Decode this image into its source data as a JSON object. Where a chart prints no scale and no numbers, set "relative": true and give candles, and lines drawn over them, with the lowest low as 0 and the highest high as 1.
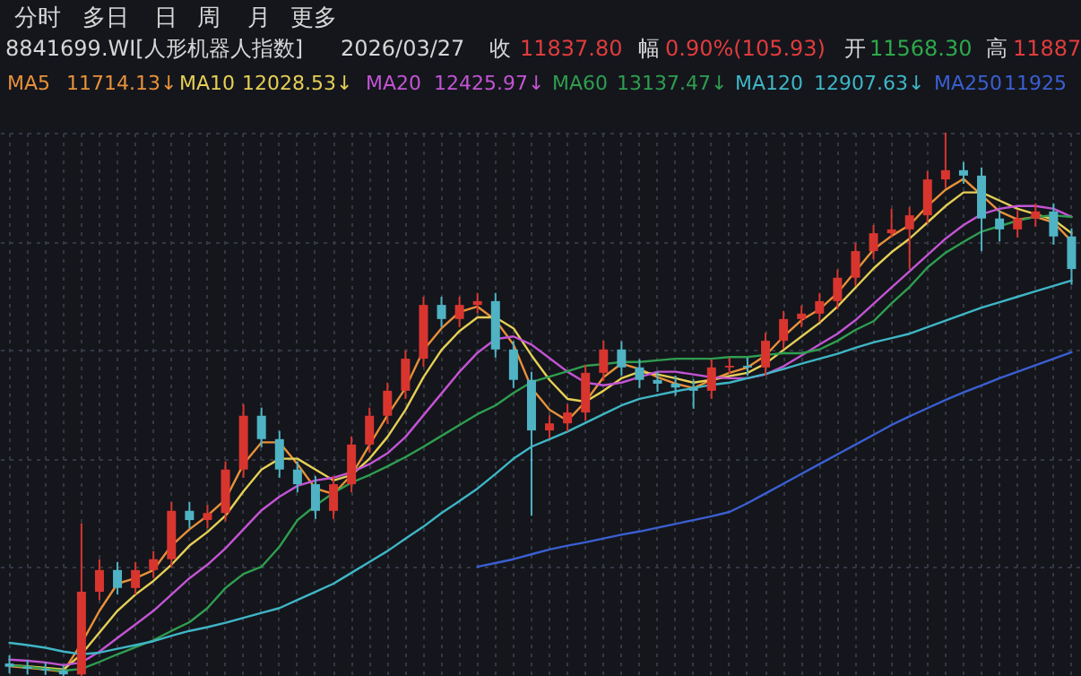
{
  "chart_data": {
    "type": "candlestick",
    "relative": true,
    "grid": true,
    "legend": "top left",
    "categories": [
      null,
      null,
      null,
      null,
      null,
      null,
      null,
      null,
      null,
      null,
      null,
      null,
      null,
      null,
      null,
      null,
      null,
      null,
      null,
      null,
      null,
      null,
      null,
      null,
      null,
      null,
      null,
      null,
      null,
      null,
      null,
      null,
      null,
      null,
      null,
      null,
      null,
      null,
      null,
      null,
      null,
      null,
      null,
      null,
      null,
      null,
      null,
      null,
      null,
      null,
      null,
      null,
      null,
      null,
      null,
      null,
      null,
      null,
      null,
      null
    ],
    "annotations": [
      "分时",
      "多日",
      "日",
      "周",
      "月",
      "更多",
      "8841699.WI[人形机器人指数]",
      "2026/03/27",
      "收",
      "11837.80",
      "幅",
      "0.90%(105.93)",
      "开",
      "11568.30",
      "高",
      "11887",
      "11714.13↓",
      "12028.53↓",
      "12425.97↓",
      "13137.47↓",
      "12907.63↓",
      "11925"
    ],
    "series": [
      {
        "type": "line",
        "name": "MA5",
        "color": "#e8913a",
        "values": [
          0.018,
          0.015,
          0.012,
          0.008,
          0.06,
          0.12,
          0.17,
          0.18,
          0.195,
          0.24,
          0.27,
          0.295,
          0.325,
          0.39,
          0.43,
          0.43,
          0.39,
          0.345,
          0.335,
          0.37,
          0.425,
          0.48,
          0.53,
          0.6,
          0.64,
          0.67,
          0.68,
          0.655,
          0.61,
          0.53,
          0.49,
          0.47,
          0.505,
          0.55,
          0.575,
          0.565,
          0.55,
          0.538,
          0.53,
          0.545,
          0.558,
          0.568,
          0.59,
          0.625,
          0.655,
          0.675,
          0.705,
          0.745,
          0.785,
          0.81,
          0.83,
          0.865,
          0.895,
          0.915,
          0.885,
          0.855,
          0.84,
          0.845,
          0.835,
          0.8
        ]
      },
      {
        "type": "line",
        "name": "MA10",
        "color": "#e6cf55",
        "values": [
          0.02,
          0.018,
          0.015,
          0.012,
          0.04,
          0.08,
          0.12,
          0.15,
          0.175,
          0.205,
          0.24,
          0.265,
          0.295,
          0.34,
          0.38,
          0.4,
          0.4,
          0.38,
          0.36,
          0.37,
          0.4,
          0.44,
          0.49,
          0.55,
          0.6,
          0.635,
          0.66,
          0.66,
          0.64,
          0.59,
          0.545,
          0.51,
          0.505,
          0.525,
          0.548,
          0.56,
          0.555,
          0.548,
          0.54,
          0.545,
          0.552,
          0.558,
          0.575,
          0.6,
          0.625,
          0.65,
          0.68,
          0.715,
          0.75,
          0.78,
          0.805,
          0.835,
          0.865,
          0.89,
          0.89,
          0.875,
          0.86,
          0.85,
          0.84,
          0.815
        ]
      },
      {
        "type": "line",
        "name": "MA20",
        "color": "#c454d4",
        "values": [
          0.03,
          0.028,
          0.025,
          0.02,
          0.025,
          0.045,
          0.07,
          0.095,
          0.12,
          0.15,
          0.18,
          0.205,
          0.235,
          0.27,
          0.305,
          0.33,
          0.35,
          0.36,
          0.365,
          0.375,
          0.39,
          0.41,
          0.44,
          0.48,
          0.52,
          0.56,
          0.595,
          0.62,
          0.625,
          0.61,
          0.585,
          0.56,
          0.54,
          0.535,
          0.54,
          0.55,
          0.56,
          0.56,
          0.555,
          0.55,
          0.548,
          0.548,
          0.555,
          0.57,
          0.59,
          0.61,
          0.63,
          0.655,
          0.685,
          0.715,
          0.745,
          0.775,
          0.805,
          0.83,
          0.85,
          0.86,
          0.865,
          0.865,
          0.86,
          0.845
        ]
      },
      {
        "type": "line",
        "name": "MA60",
        "color": "#2f9e4f",
        "values": [
          0.02,
          0.017,
          0.013,
          0.01,
          0.013,
          0.026,
          0.04,
          0.053,
          0.066,
          0.083,
          0.099,
          0.125,
          0.162,
          0.188,
          0.201,
          0.238,
          0.287,
          0.314,
          0.337,
          0.356,
          0.37,
          0.386,
          0.403,
          0.422,
          0.442,
          0.462,
          0.482,
          0.498,
          0.521,
          0.541,
          0.551,
          0.561,
          0.571,
          0.574,
          0.578,
          0.578,
          0.581,
          0.584,
          0.584,
          0.584,
          0.587,
          0.587,
          0.591,
          0.594,
          0.594,
          0.601,
          0.617,
          0.637,
          0.653,
          0.686,
          0.716,
          0.752,
          0.779,
          0.799,
          0.818,
          0.828,
          0.838,
          0.845,
          0.848,
          0.845
        ]
      },
      {
        "type": "line",
        "name": "MA120",
        "color": "#3fb6c6",
        "values": [
          0.061,
          0.057,
          0.052,
          0.045,
          0.04,
          0.043,
          0.05,
          0.057,
          0.064,
          0.074,
          0.083,
          0.09,
          0.098,
          0.107,
          0.116,
          0.125,
          0.14,
          0.155,
          0.17,
          0.19,
          0.21,
          0.23,
          0.253,
          0.275,
          0.3,
          0.322,
          0.345,
          0.372,
          0.4,
          0.422,
          0.436,
          0.45,
          0.466,
          0.482,
          0.498,
          0.51,
          0.517,
          0.524,
          0.53,
          0.536,
          0.54,
          0.548,
          0.556,
          0.565,
          0.575,
          0.584,
          0.593,
          0.604,
          0.614,
          0.622,
          0.63,
          0.642,
          0.654,
          0.666,
          0.678,
          0.688,
          0.698,
          0.708,
          0.718,
          0.728
        ]
      },
      {
        "type": "line",
        "name": "MA250",
        "color": "#3b5fd2",
        "values": [
          null,
          null,
          null,
          null,
          null,
          null,
          null,
          null,
          null,
          null,
          null,
          null,
          null,
          null,
          null,
          null,
          null,
          null,
          null,
          null,
          null,
          null,
          null,
          null,
          null,
          null,
          0.201,
          0.208,
          0.215,
          0.224,
          0.233,
          0.24,
          0.246,
          0.253,
          0.26,
          0.266,
          0.273,
          0.28,
          0.287,
          0.294,
          0.302,
          0.318,
          0.336,
          0.354,
          0.372,
          0.39,
          0.408,
          0.426,
          0.444,
          0.462,
          0.478,
          0.493,
          0.508,
          0.522,
          0.535,
          0.548,
          0.56,
          0.572,
          0.584,
          0.596
        ]
      },
      {
        "ohlc": [
          [
            0.023,
            0.038,
            0.005,
            0.017
          ],
          [
            0.017,
            0.03,
            0.003,
            0.013
          ],
          [
            0.013,
            0.025,
            0.002,
            0.01
          ],
          [
            0.01,
            0.02,
            0.0,
            0.003
          ],
          [
            0.003,
            0.281,
            0.0,
            0.155
          ],
          [
            0.155,
            0.215,
            0.14,
            0.195
          ],
          [
            0.195,
            0.21,
            0.15,
            0.162
          ],
          [
            0.162,
            0.21,
            0.15,
            0.195
          ],
          [
            0.195,
            0.23,
            0.18,
            0.215
          ],
          [
            0.215,
            0.32,
            0.2,
            0.304
          ],
          [
            0.304,
            0.32,
            0.272,
            0.287
          ],
          [
            0.287,
            0.315,
            0.272,
            0.3
          ],
          [
            0.3,
            0.395,
            0.285,
            0.38
          ],
          [
            0.38,
            0.5,
            0.365,
            0.479
          ],
          [
            0.479,
            0.494,
            0.421,
            0.436
          ],
          [
            0.436,
            0.451,
            0.365,
            0.38
          ],
          [
            0.38,
            0.395,
            0.338,
            0.353
          ],
          [
            0.353,
            0.368,
            0.289,
            0.304
          ],
          [
            0.304,
            0.368,
            0.289,
            0.353
          ],
          [
            0.353,
            0.441,
            0.338,
            0.426
          ],
          [
            0.426,
            0.494,
            0.411,
            0.479
          ],
          [
            0.479,
            0.54,
            0.464,
            0.525
          ],
          [
            0.525,
            0.599,
            0.51,
            0.584
          ],
          [
            0.584,
            0.698,
            0.569,
            0.683
          ],
          [
            0.683,
            0.698,
            0.642,
            0.657
          ],
          [
            0.657,
            0.698,
            0.642,
            0.683
          ],
          [
            0.683,
            0.705,
            0.668,
            0.69
          ],
          [
            0.69,
            0.705,
            0.586,
            0.601
          ],
          [
            0.601,
            0.616,
            0.53,
            0.545
          ],
          [
            0.545,
            0.56,
            0.295,
            0.452
          ],
          [
            0.452,
            0.48,
            0.437,
            0.465
          ],
          [
            0.465,
            0.5,
            0.45,
            0.485
          ],
          [
            0.485,
            0.573,
            0.47,
            0.558
          ],
          [
            0.558,
            0.617,
            0.543,
            0.601
          ],
          [
            0.601,
            0.616,
            0.553,
            0.568
          ],
          [
            0.568,
            0.583,
            0.53,
            0.545
          ],
          [
            0.545,
            0.56,
            0.523,
            0.538
          ],
          [
            0.538,
            0.553,
            0.516,
            0.531
          ],
          [
            0.531,
            0.546,
            0.492,
            0.525
          ],
          [
            0.525,
            0.583,
            0.51,
            0.568
          ],
          [
            0.568,
            0.586,
            0.556,
            0.571
          ],
          [
            0.571,
            0.586,
            0.553,
            0.568
          ],
          [
            0.568,
            0.632,
            0.553,
            0.617
          ],
          [
            0.617,
            0.672,
            0.602,
            0.657
          ],
          [
            0.657,
            0.682,
            0.642,
            0.667
          ],
          [
            0.667,
            0.705,
            0.652,
            0.69
          ],
          [
            0.69,
            0.748,
            0.675,
            0.733
          ],
          [
            0.733,
            0.797,
            0.718,
            0.782
          ],
          [
            0.782,
            0.83,
            0.767,
            0.815
          ],
          [
            0.815,
            0.86,
            0.807,
            0.822
          ],
          [
            0.822,
            0.863,
            0.749,
            0.848
          ],
          [
            0.848,
            0.929,
            0.833,
            0.914
          ],
          [
            0.914,
            1.0,
            0.899,
            0.931
          ],
          [
            0.931,
            0.946,
            0.906,
            0.921
          ],
          [
            0.921,
            0.936,
            0.782,
            0.842
          ],
          [
            0.842,
            0.857,
            0.8,
            0.822
          ],
          [
            0.822,
            0.857,
            0.807,
            0.842
          ],
          [
            0.842,
            0.87,
            0.827,
            0.855
          ],
          [
            0.855,
            0.87,
            0.794,
            0.809
          ],
          [
            0.809,
            0.824,
            0.72,
            0.749
          ]
        ]
      }
    ]
  }
}
